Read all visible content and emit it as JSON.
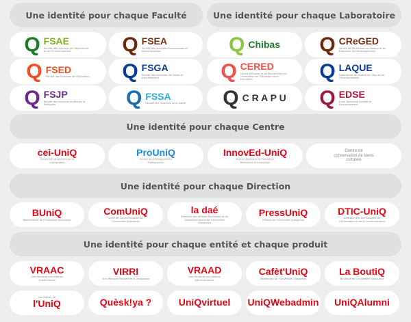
{
  "headers": {
    "faculte": "Une identité pour chaque Faculté",
    "laboratoire": "Une identité pour chaque Laboratoire",
    "centre": "Une identité pour chaque Centre",
    "direction": "Une identité pour chaque Direction",
    "entite": "Une identité pour chaque entité et chaque produit"
  },
  "facultes": [
    {
      "name": "FSAE",
      "sub": "Faculté des Sciences de l'Agriculture et de l'Environnement",
      "color": "#7ab51d",
      "qcolor": "#1e7a2e"
    },
    {
      "name": "FSEA",
      "sub": "Faculté des Sciences Économiques et Administratives",
      "color": "#7a2e12",
      "qcolor": "#6b2a10"
    },
    {
      "name": "FSED",
      "sub": "Faculté des Sciences de l'Éducation",
      "color": "#f04e23",
      "qcolor": "#f04e23"
    },
    {
      "name": "FSGA",
      "sub": "Faculté des Sciences, de Génie et d'Architecture",
      "color": "#0b3d91",
      "qcolor": "#0b3d91"
    },
    {
      "name": "FSJP",
      "sub": "Faculté des Sciences Juridiques et Politiques",
      "color": "#6a2c91",
      "qcolor": "#6a2c91"
    },
    {
      "name": "FSSA",
      "sub": "Faculté des Sciences de la Santé",
      "color": "#29abe2",
      "qcolor": "#1a6fb3"
    }
  ],
  "laboratoires": [
    {
      "name": "Chibas",
      "sub": "",
      "color": "#1e7a2e",
      "qcolor": "#8cc63f"
    },
    {
      "name": "CReGED",
      "sub": "Centre de Recherche en Gestion et en Économie du Développement",
      "color": "#7a2e12",
      "qcolor": "#6b2a10"
    },
    {
      "name": "CERED",
      "sub": "Centre d'Études et de Recherches sur l'Innovation en Éducation et en Formation",
      "color": "#f0504a",
      "qcolor": "#f0504a"
    },
    {
      "name": "LAQUE",
      "sub": "Laboratoire de Qualité de l'Eau et de l'Environnement",
      "color": "#0b3d91",
      "qcolor": "#0b3d91"
    },
    {
      "name": "C R A P U",
      "sub": "",
      "color": "#333333",
      "qcolor": "#333333"
    },
    {
      "name": "EDSE",
      "sub": "École Doctorale Société et Environnement",
      "color": "#b5163c",
      "qcolor": "#9b1b3a"
    }
  ],
  "centres": [
    {
      "name": "cei-UniQ",
      "sub": "Centre d'Entrepreneuriat et d'Innovation",
      "color": "#e30613"
    },
    {
      "name": "ProUniQ",
      "sub": "Centre de Développement Professionnel",
      "color": "#1a8ad4"
    },
    {
      "name": "InnovEd-UniQ",
      "sub": "Institut Supérieur de Formation, Recherche et Innovation",
      "color": "#e30613"
    },
    {
      "name": "Centre de conservation de biens culturels",
      "sub": "",
      "color": "#888888"
    }
  ],
  "directions": [
    {
      "name": "BUniQ",
      "sub": "Bibliothèque de l'Université Quisqueya",
      "color": "#e30613"
    },
    {
      "name": "ComUniQ",
      "sub": "Unité de Communication de l'Université Quisqueya",
      "color": "#e30613"
    },
    {
      "name": "la daé",
      "sub": "Direction des Affaires Étudiantes et du Volontariat Social de l'Université Quisqueya",
      "color": "#e30613"
    },
    {
      "name": "PressUniQ",
      "sub": "Presses de l'Université Quisqueya",
      "color": "#e30613"
    },
    {
      "name": "DTIC-UniQ",
      "sub": "Direction des Technologies de l'Information et de la Communication",
      "color": "#e30613"
    }
  ],
  "entites": [
    {
      "name": "VRAAC",
      "sub": "Vice-Rectorat aux Affaires Académiques",
      "color": "#e30613"
    },
    {
      "name": "VIRRI",
      "sub": "Vice-Rectorat Recherche et Innovation",
      "color": "#e30613"
    },
    {
      "name": "VRAAD",
      "sub": "Vice-Rectorat aux Affaires Administratives",
      "color": "#e30613"
    },
    {
      "name": "Cafèt'UniQ",
      "sub": "Restaurant de l'Université Quisqueya",
      "color": "#e30613"
    },
    {
      "name": "La BoutiQ",
      "sub": "Boutique de l'Université Quisqueya",
      "color": "#e30613"
    },
    {
      "name": "l'UniQ",
      "sub": "Les Brèves de",
      "color": "#e30613"
    },
    {
      "name": "Quèsk!ya ?",
      "sub": "",
      "color": "#e30613"
    },
    {
      "name": "UniQvirtuel",
      "sub": "",
      "color": "#e30613"
    },
    {
      "name": "UniQWebadmin",
      "sub": "",
      "color": "#e30613"
    },
    {
      "name": "UniQAlumni",
      "sub": "",
      "color": "#e30613"
    }
  ]
}
